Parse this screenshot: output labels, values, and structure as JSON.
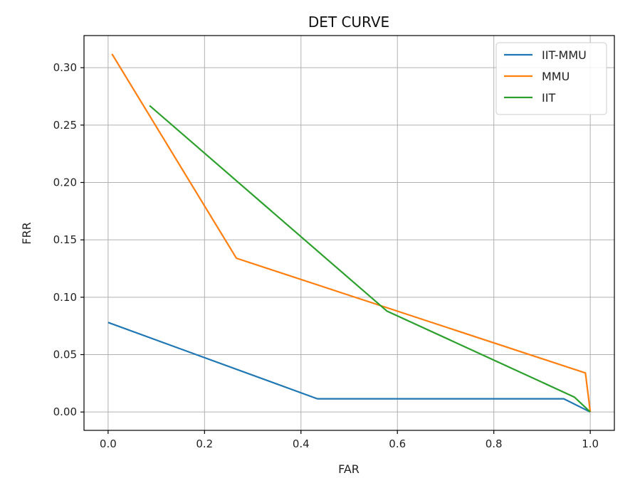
{
  "chart_data": {
    "type": "line",
    "title": "DET CURVE",
    "xlabel": "FAR",
    "ylabel": "FRR",
    "xlim": [
      -0.05,
      1.05
    ],
    "ylim": [
      -0.016,
      0.328
    ],
    "xticks": [
      0.0,
      0.2,
      0.4,
      0.6,
      0.8,
      1.0
    ],
    "xtick_labels": [
      "0.0",
      "0.2",
      "0.4",
      "0.6",
      "0.8",
      "1.0"
    ],
    "yticks": [
      0.0,
      0.05,
      0.1,
      0.15,
      0.2,
      0.25,
      0.3
    ],
    "ytick_labels": [
      "0.00",
      "0.05",
      "0.10",
      "0.15",
      "0.20",
      "0.25",
      "0.30"
    ],
    "grid": true,
    "legend_position": "top-right",
    "series": [
      {
        "name": "IIT-MMU",
        "color": "#1f77b4",
        "x": [
          0.0,
          0.434,
          0.945,
          1.0
        ],
        "y": [
          0.078,
          0.0115,
          0.0115,
          0.0
        ]
      },
      {
        "name": "MMU",
        "color": "#ff7f0e",
        "x": [
          0.008,
          0.266,
          0.99,
          1.0
        ],
        "y": [
          0.312,
          0.134,
          0.034,
          0.0
        ]
      },
      {
        "name": "IIT",
        "color": "#2ca02c",
        "x": [
          0.086,
          0.578,
          0.967,
          1.0
        ],
        "y": [
          0.267,
          0.088,
          0.013,
          0.0
        ]
      }
    ]
  }
}
